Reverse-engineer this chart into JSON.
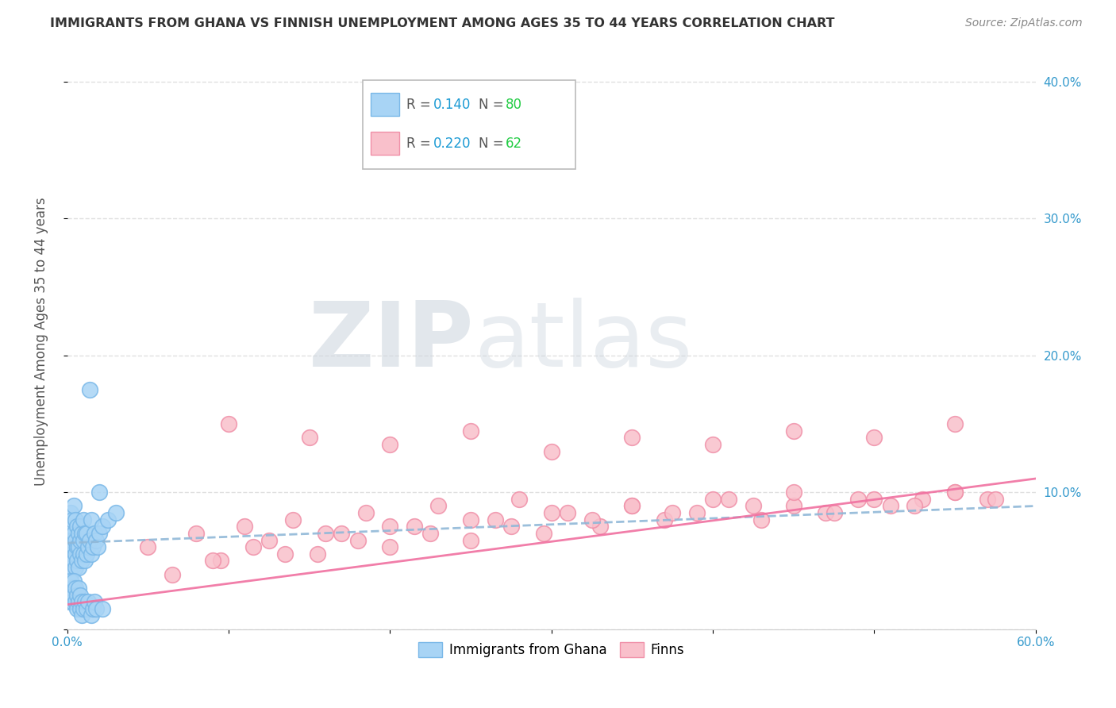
{
  "title": "IMMIGRANTS FROM GHANA VS FINNISH UNEMPLOYMENT AMONG AGES 35 TO 44 YEARS CORRELATION CHART",
  "source": "Source: ZipAtlas.com",
  "ylabel": "Unemployment Among Ages 35 to 44 years",
  "x_min": 0.0,
  "x_max": 0.6,
  "y_min": 0.0,
  "y_max": 0.42,
  "x_ticks": [
    0.0,
    0.1,
    0.2,
    0.3,
    0.4,
    0.5,
    0.6
  ],
  "x_tick_labels": [
    "0.0%",
    "",
    "",
    "",
    "",
    "",
    "60.0%"
  ],
  "y_ticks": [
    0.0,
    0.1,
    0.2,
    0.3,
    0.4
  ],
  "y_tick_labels_right": [
    "",
    "10.0%",
    "20.0%",
    "30.0%",
    "40.0%"
  ],
  "color_ghana": "#a8d4f5",
  "color_ghana_edge": "#7ab8e8",
  "color_finns": "#f9c0cb",
  "color_finns_edge": "#f090a8",
  "color_ghana_line": "#90b8d8",
  "color_finns_line": "#f070a0",
  "color_r_text": "#1a9ad4",
  "color_n_text": "#22cc44",
  "background_color": "#ffffff",
  "grid_color": "#e0e0e0",
  "watermark_zip": "ZIP",
  "watermark_atlas": "atlas",
  "ghana_scatter_x": [
    0.001,
    0.001,
    0.001,
    0.002,
    0.002,
    0.002,
    0.002,
    0.002,
    0.003,
    0.003,
    0.003,
    0.003,
    0.003,
    0.004,
    0.004,
    0.004,
    0.004,
    0.005,
    0.005,
    0.005,
    0.005,
    0.006,
    0.006,
    0.006,
    0.007,
    0.007,
    0.007,
    0.008,
    0.008,
    0.008,
    0.009,
    0.009,
    0.01,
    0.01,
    0.01,
    0.011,
    0.011,
    0.012,
    0.012,
    0.013,
    0.014,
    0.015,
    0.015,
    0.016,
    0.017,
    0.018,
    0.019,
    0.02,
    0.022,
    0.025,
    0.001,
    0.001,
    0.002,
    0.002,
    0.003,
    0.003,
    0.004,
    0.004,
    0.005,
    0.005,
    0.006,
    0.006,
    0.007,
    0.007,
    0.008,
    0.008,
    0.009,
    0.009,
    0.01,
    0.011,
    0.012,
    0.013,
    0.014,
    0.015,
    0.016,
    0.017,
    0.018,
    0.02,
    0.022,
    0.03
  ],
  "ghana_scatter_y": [
    0.05,
    0.06,
    0.07,
    0.04,
    0.055,
    0.065,
    0.075,
    0.085,
    0.045,
    0.055,
    0.065,
    0.075,
    0.08,
    0.05,
    0.06,
    0.07,
    0.09,
    0.045,
    0.055,
    0.065,
    0.08,
    0.05,
    0.06,
    0.075,
    0.045,
    0.06,
    0.07,
    0.055,
    0.065,
    0.075,
    0.05,
    0.07,
    0.055,
    0.065,
    0.08,
    0.05,
    0.07,
    0.055,
    0.07,
    0.06,
    0.065,
    0.055,
    0.08,
    0.06,
    0.07,
    0.065,
    0.06,
    0.07,
    0.075,
    0.08,
    0.02,
    0.03,
    0.025,
    0.035,
    0.02,
    0.03,
    0.025,
    0.035,
    0.02,
    0.03,
    0.025,
    0.015,
    0.02,
    0.03,
    0.015,
    0.025,
    0.02,
    0.01,
    0.015,
    0.02,
    0.015,
    0.02,
    0.175,
    0.01,
    0.015,
    0.02,
    0.015,
    0.1,
    0.015,
    0.085
  ],
  "finns_scatter_x": [
    0.05,
    0.08,
    0.095,
    0.11,
    0.125,
    0.14,
    0.155,
    0.17,
    0.185,
    0.2,
    0.215,
    0.23,
    0.25,
    0.265,
    0.28,
    0.295,
    0.31,
    0.33,
    0.35,
    0.37,
    0.39,
    0.41,
    0.43,
    0.45,
    0.47,
    0.49,
    0.51,
    0.53,
    0.55,
    0.57,
    0.065,
    0.09,
    0.115,
    0.135,
    0.16,
    0.18,
    0.2,
    0.225,
    0.25,
    0.275,
    0.3,
    0.325,
    0.35,
    0.375,
    0.4,
    0.425,
    0.45,
    0.475,
    0.5,
    0.525,
    0.55,
    0.575,
    0.1,
    0.15,
    0.2,
    0.25,
    0.3,
    0.35,
    0.4,
    0.45,
    0.5,
    0.55
  ],
  "finns_scatter_y": [
    0.06,
    0.07,
    0.05,
    0.075,
    0.065,
    0.08,
    0.055,
    0.07,
    0.085,
    0.06,
    0.075,
    0.09,
    0.065,
    0.08,
    0.095,
    0.07,
    0.085,
    0.075,
    0.09,
    0.08,
    0.085,
    0.095,
    0.08,
    0.09,
    0.085,
    0.095,
    0.09,
    0.095,
    0.1,
    0.095,
    0.04,
    0.05,
    0.06,
    0.055,
    0.07,
    0.065,
    0.075,
    0.07,
    0.08,
    0.075,
    0.085,
    0.08,
    0.09,
    0.085,
    0.095,
    0.09,
    0.1,
    0.085,
    0.095,
    0.09,
    0.1,
    0.095,
    0.15,
    0.14,
    0.135,
    0.145,
    0.13,
    0.14,
    0.135,
    0.145,
    0.14,
    0.15
  ]
}
